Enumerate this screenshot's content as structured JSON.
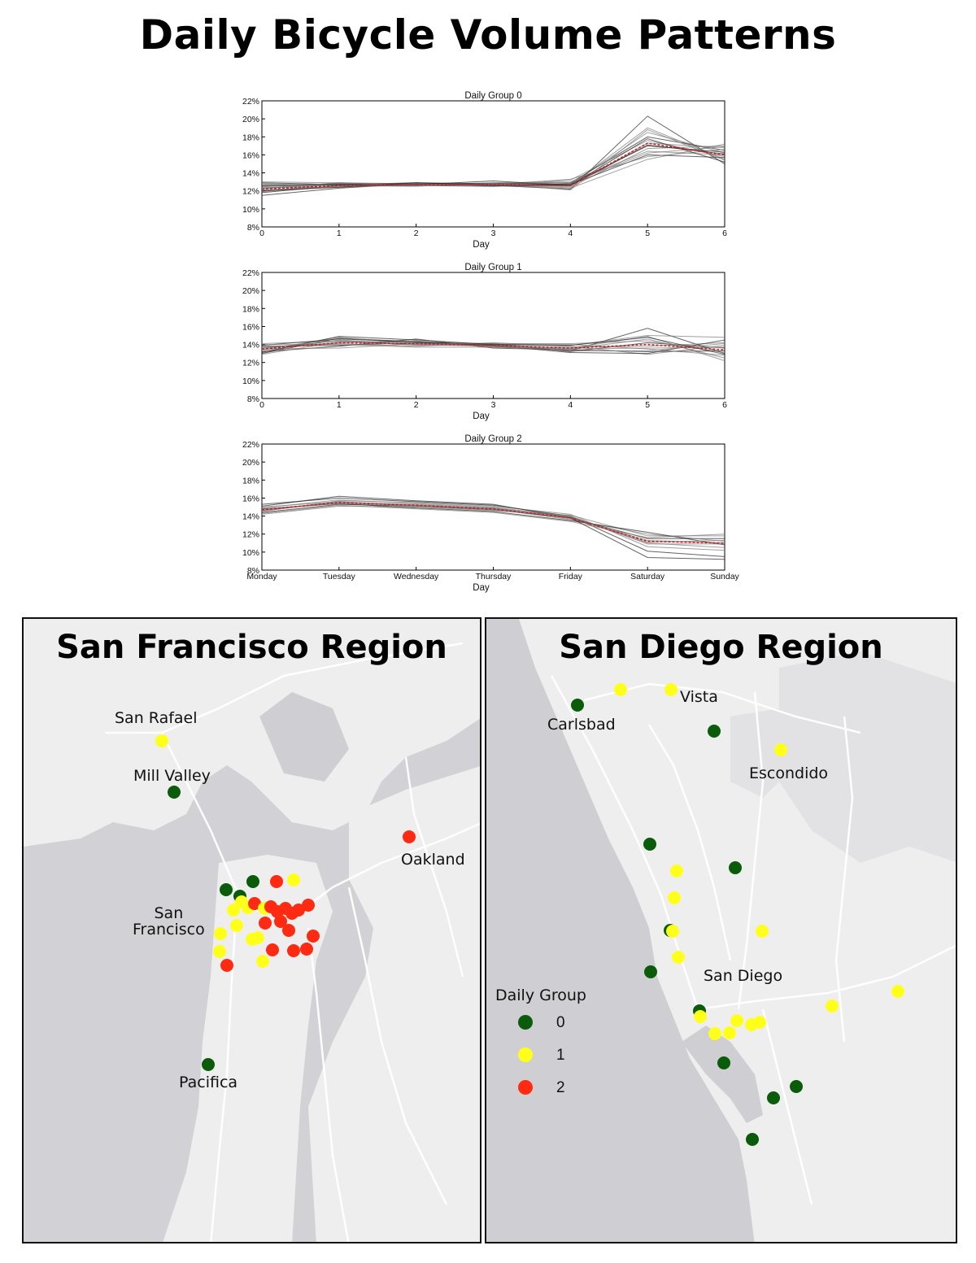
{
  "title": "Daily Bicycle Volume Patterns",
  "chart_data": [
    {
      "type": "line",
      "title": "Daily Group 0",
      "xlabel": "Day",
      "ylabel": "",
      "x": [
        0,
        1,
        2,
        3,
        4,
        5,
        6
      ],
      "x_tick_labels": [
        "0",
        "1",
        "2",
        "3",
        "4",
        "5",
        "6"
      ],
      "y_tick_labels": [
        "8%",
        "10%",
        "12%",
        "14%",
        "16%",
        "18%",
        "20%",
        "22%"
      ],
      "ylim": [
        8,
        22
      ],
      "mean": [
        12.2,
        12.6,
        12.7,
        12.7,
        12.6,
        17.3,
        16.0
      ],
      "series": [
        {
          "values": [
            11.5,
            12.3,
            12.8,
            12.6,
            12.2,
            20.3,
            15.0
          ]
        },
        {
          "values": [
            12.0,
            12.5,
            12.6,
            12.7,
            12.6,
            19.0,
            15.5
          ]
        },
        {
          "values": [
            12.3,
            12.7,
            12.7,
            12.9,
            12.7,
            18.5,
            16.2
          ]
        },
        {
          "values": [
            12.6,
            12.8,
            12.6,
            12.8,
            12.9,
            18.0,
            16.5
          ]
        },
        {
          "values": [
            13.0,
            12.9,
            12.8,
            12.6,
            13.2,
            17.6,
            15.8
          ]
        },
        {
          "values": [
            12.4,
            12.4,
            12.9,
            12.7,
            12.5,
            17.3,
            16.8
          ]
        },
        {
          "values": [
            11.8,
            12.6,
            12.6,
            12.5,
            12.8,
            17.0,
            16.3
          ]
        },
        {
          "values": [
            12.2,
            12.9,
            12.7,
            12.6,
            12.4,
            16.7,
            17.0
          ]
        },
        {
          "values": [
            12.7,
            12.6,
            12.5,
            12.9,
            13.0,
            16.4,
            16.0
          ]
        },
        {
          "values": [
            12.9,
            12.7,
            12.9,
            12.8,
            12.7,
            16.0,
            15.7
          ]
        },
        {
          "values": [
            12.1,
            12.5,
            12.6,
            12.7,
            13.3,
            15.8,
            16.6
          ]
        },
        {
          "values": [
            11.9,
            12.8,
            12.8,
            12.6,
            12.3,
            15.5,
            17.2
          ]
        },
        {
          "values": [
            12.5,
            12.7,
            12.7,
            13.1,
            12.6,
            17.8,
            15.2
          ]
        },
        {
          "values": [
            12.8,
            12.6,
            12.8,
            12.7,
            12.9,
            16.2,
            16.9
          ]
        },
        {
          "values": [
            12.3,
            12.9,
            12.6,
            12.8,
            12.1,
            18.8,
            15.4
          ]
        },
        {
          "values": [
            12.0,
            12.4,
            12.9,
            12.6,
            12.6,
            17.1,
            16.1
          ]
        }
      ]
    },
    {
      "type": "line",
      "title": "Daily Group 1",
      "xlabel": "Day",
      "ylabel": "",
      "x": [
        0,
        1,
        2,
        3,
        4,
        5,
        6
      ],
      "x_tick_labels": [
        "0",
        "1",
        "2",
        "3",
        "4",
        "5",
        "6"
      ],
      "y_tick_labels": [
        "8%",
        "10%",
        "12%",
        "14%",
        "16%",
        "18%",
        "20%",
        "22%"
      ],
      "ylim": [
        8,
        22
      ],
      "mean": [
        13.5,
        14.2,
        14.1,
        13.9,
        13.6,
        14.0,
        13.4
      ],
      "series": [
        {
          "values": [
            13.0,
            14.7,
            14.3,
            13.8,
            13.3,
            15.8,
            13.0
          ]
        },
        {
          "values": [
            13.3,
            14.5,
            14.0,
            14.0,
            13.9,
            15.0,
            14.8
          ]
        },
        {
          "values": [
            13.6,
            14.2,
            14.4,
            13.7,
            13.5,
            14.6,
            12.5
          ]
        },
        {
          "values": [
            13.8,
            13.9,
            14.2,
            14.1,
            13.2,
            14.2,
            13.6
          ]
        },
        {
          "values": [
            14.1,
            14.4,
            13.9,
            13.9,
            13.7,
            13.8,
            14.2
          ]
        },
        {
          "values": [
            13.4,
            14.8,
            14.1,
            14.0,
            14.0,
            13.5,
            12.8
          ]
        },
        {
          "values": [
            13.2,
            13.8,
            14.6,
            13.6,
            13.4,
            13.2,
            13.3
          ]
        },
        {
          "values": [
            13.7,
            14.1,
            13.8,
            14.2,
            13.8,
            12.9,
            13.9
          ]
        },
        {
          "values": [
            12.9,
            14.3,
            14.0,
            13.8,
            13.6,
            14.9,
            12.2
          ]
        },
        {
          "values": [
            13.9,
            14.6,
            14.3,
            13.9,
            13.1,
            13.0,
            14.5
          ]
        },
        {
          "values": [
            13.5,
            13.6,
            14.1,
            14.1,
            14.1,
            14.4,
            13.1
          ]
        },
        {
          "values": [
            14.0,
            14.0,
            13.7,
            13.7,
            13.5,
            13.6,
            13.7
          ]
        },
        {
          "values": [
            13.1,
            14.9,
            14.5,
            14.0,
            13.9,
            14.8,
            12.9
          ]
        },
        {
          "values": [
            13.6,
            14.4,
            14.2,
            13.8,
            13.3,
            13.3,
            14.1
          ]
        }
      ]
    },
    {
      "type": "line",
      "title": "Daily Group 2",
      "xlabel": "Day",
      "ylabel": "",
      "x": [
        0,
        1,
        2,
        3,
        4,
        5,
        6
      ],
      "x_tick_labels": [
        "Monday",
        "Tuesday",
        "Wednesday",
        "Thursday",
        "Friday",
        "Saturday",
        "Sunday"
      ],
      "y_tick_labels": [
        "8%",
        "10%",
        "12%",
        "14%",
        "16%",
        "18%",
        "20%",
        "22%"
      ],
      "ylim": [
        8,
        22
      ],
      "mean": [
        14.7,
        15.5,
        15.2,
        14.8,
        13.8,
        11.2,
        11.0
      ],
      "series": [
        {
          "values": [
            15.3,
            16.0,
            15.6,
            15.2,
            14.0,
            10.1,
            9.5
          ]
        },
        {
          "values": [
            14.9,
            15.8,
            15.4,
            15.0,
            13.9,
            11.0,
            10.5
          ]
        },
        {
          "values": [
            14.6,
            15.5,
            15.3,
            14.9,
            13.7,
            11.3,
            11.0
          ]
        },
        {
          "values": [
            14.4,
            15.3,
            15.1,
            14.7,
            13.8,
            11.5,
            11.5
          ]
        },
        {
          "values": [
            14.2,
            15.1,
            15.0,
            14.6,
            14.1,
            11.8,
            11.8
          ]
        },
        {
          "values": [
            15.0,
            15.6,
            15.2,
            14.8,
            13.6,
            12.0,
            11.2
          ]
        },
        {
          "values": [
            14.8,
            15.4,
            14.9,
            14.5,
            13.5,
            12.2,
            10.8
          ]
        },
        {
          "values": [
            14.5,
            15.7,
            15.5,
            15.1,
            14.2,
            10.6,
            10.2
          ]
        },
        {
          "values": [
            14.3,
            15.2,
            14.8,
            14.4,
            13.4,
            11.6,
            12.0
          ]
        },
        {
          "values": [
            15.1,
            16.2,
            15.7,
            15.3,
            13.8,
            9.4,
            9.2
          ]
        },
        {
          "values": [
            14.7,
            15.4,
            15.2,
            14.8,
            13.9,
            11.1,
            11.3
          ]
        },
        {
          "values": [
            14.6,
            15.6,
            15.1,
            14.9,
            14.0,
            10.9,
            10.9
          ]
        }
      ]
    }
  ],
  "maps": {
    "sf": {
      "title": "San Francisco Region",
      "labels": {
        "san_rafael": "San Rafael",
        "mill_valley": "Mill Valley",
        "oakland": "Oakland",
        "san_francisco": "San\nFrancisco",
        "pacifica": "Pacifica"
      }
    },
    "sd": {
      "title": "San Diego Region",
      "labels": {
        "carlsbad": "Carlsbad",
        "vista": "Vista",
        "escondido": "Escondido",
        "san_diego": "San Diego"
      },
      "legend": {
        "title": "Daily Group",
        "items": [
          {
            "label": "0",
            "color": "#0a5c0a"
          },
          {
            "label": "1",
            "color": "#ffff1a"
          },
          {
            "label": "2",
            "color": "#ff2a12"
          }
        ]
      }
    }
  },
  "colors": {
    "group0": "#0a5c0a",
    "group1": "#ffff1a",
    "group2": "#ff2a12",
    "mean_line": "#cc2020",
    "land": "#f0f0f0",
    "water": "#cfcfd3"
  }
}
